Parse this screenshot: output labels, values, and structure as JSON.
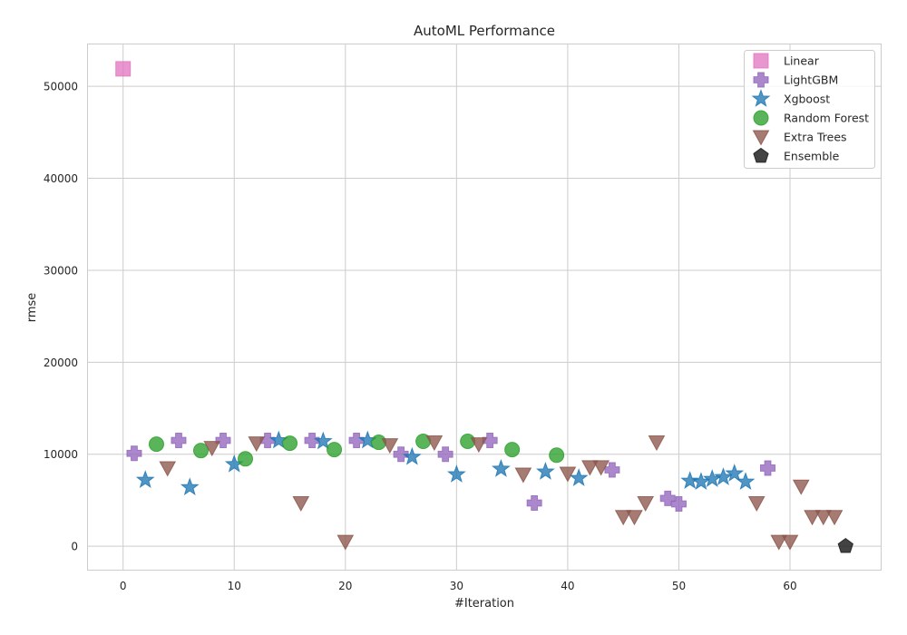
{
  "chart_data": {
    "type": "scatter",
    "title": "AutoML Performance",
    "xlabel": "#Iteration",
    "ylabel": "rmse",
    "xlim": [
      -3.2,
      68.2
    ],
    "ylim": [
      -2600,
      54600
    ],
    "xticks": [
      0,
      10,
      20,
      30,
      40,
      50,
      60
    ],
    "yticks": [
      0,
      10000,
      20000,
      30000,
      40000,
      50000
    ],
    "grid": true,
    "legend_position": "top-right",
    "series": [
      {
        "name": "Linear",
        "marker": "square",
        "color": "#e377c2",
        "points": [
          [
            0,
            51900
          ]
        ]
      },
      {
        "name": "LightGBM",
        "marker": "plus",
        "color": "#9467bd",
        "points": [
          [
            1,
            10100
          ],
          [
            5,
            11500
          ],
          [
            9,
            11500
          ],
          [
            13,
            11500
          ],
          [
            17,
            11500
          ],
          [
            21,
            11500
          ],
          [
            25,
            10000
          ],
          [
            29,
            10000
          ],
          [
            33,
            11500
          ],
          [
            37,
            4700
          ],
          [
            44,
            8300
          ],
          [
            49,
            5200
          ],
          [
            50,
            4600
          ],
          [
            58,
            8500
          ]
        ]
      },
      {
        "name": "Xgboost",
        "marker": "star",
        "color": "#1f77b4",
        "points": [
          [
            2,
            7200
          ],
          [
            6,
            6400
          ],
          [
            10,
            8900
          ],
          [
            14,
            11500
          ],
          [
            18,
            11400
          ],
          [
            22,
            11500
          ],
          [
            26,
            9700
          ],
          [
            30,
            7800
          ],
          [
            34,
            8400
          ],
          [
            38,
            8100
          ],
          [
            41,
            7400
          ],
          [
            51,
            7100
          ],
          [
            52,
            7000
          ],
          [
            53,
            7300
          ],
          [
            54,
            7500
          ],
          [
            55,
            7900
          ],
          [
            56,
            7000
          ]
        ]
      },
      {
        "name": "Random Forest",
        "marker": "circle",
        "color": "#2ca02c",
        "points": [
          [
            3,
            11100
          ],
          [
            7,
            10400
          ],
          [
            11,
            9500
          ],
          [
            15,
            11200
          ],
          [
            19,
            10500
          ],
          [
            23,
            11300
          ],
          [
            27,
            11400
          ],
          [
            31,
            11400
          ],
          [
            35,
            10500
          ],
          [
            39,
            9900
          ]
        ]
      },
      {
        "name": "Extra Trees",
        "marker": "triangle-down",
        "color": "#8c564b",
        "points": [
          [
            4,
            8500
          ],
          [
            8,
            10700
          ],
          [
            12,
            11200
          ],
          [
            16,
            4700
          ],
          [
            20,
            500
          ],
          [
            24,
            11000
          ],
          [
            28,
            11300
          ],
          [
            32,
            11100
          ],
          [
            36,
            7800
          ],
          [
            40,
            7900
          ],
          [
            42,
            8600
          ],
          [
            43,
            8600
          ],
          [
            45,
            3200
          ],
          [
            46,
            3200
          ],
          [
            47,
            4700
          ],
          [
            48,
            11300
          ],
          [
            57,
            4700
          ],
          [
            59,
            500
          ],
          [
            60,
            500
          ],
          [
            61,
            6500
          ],
          [
            62,
            3200
          ],
          [
            63,
            3200
          ],
          [
            64,
            3200
          ]
        ]
      },
      {
        "name": "Ensemble",
        "marker": "pentagon",
        "color": "#1a1a1a",
        "points": [
          [
            65,
            0
          ]
        ]
      }
    ]
  }
}
